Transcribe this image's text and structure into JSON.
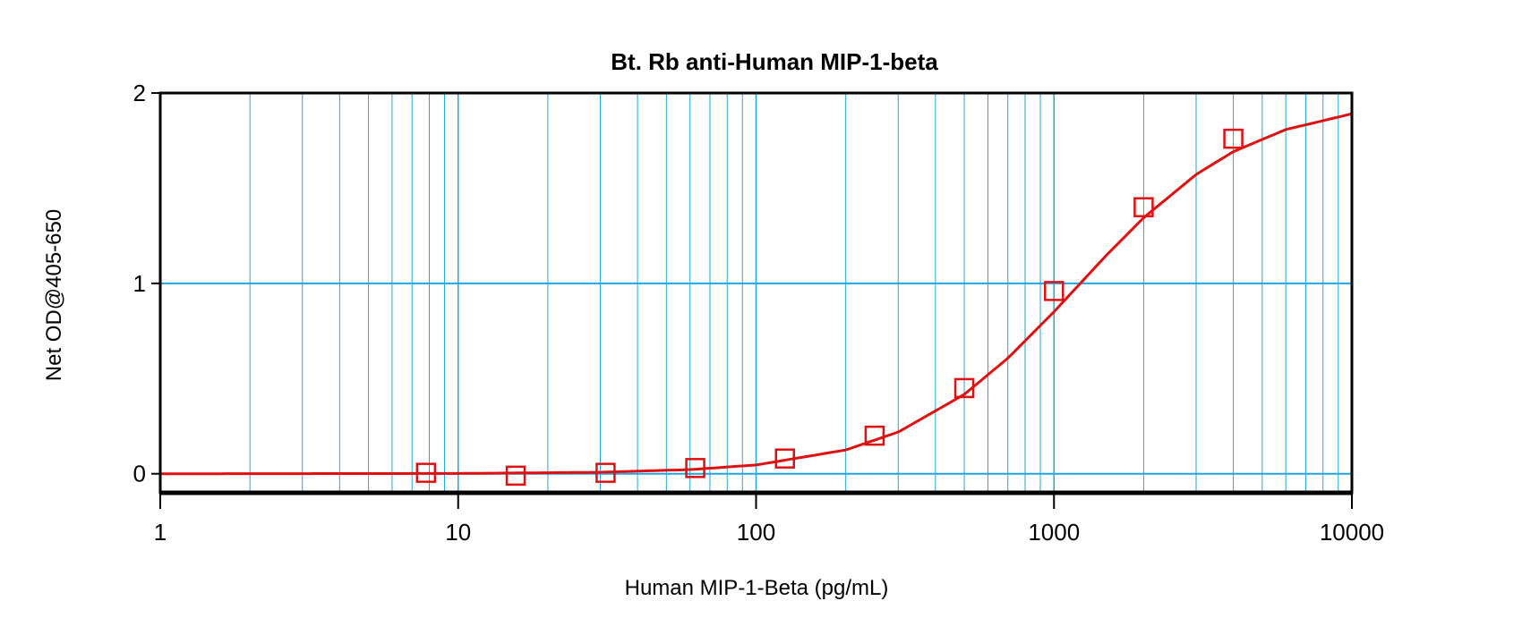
{
  "chart_data": {
    "type": "scatter",
    "title": "Bt. Rb anti-Human MIP-1-beta",
    "xlabel": "Human MIP-1-Beta (pg/mL)",
    "ylabel": "Net OD@405-650",
    "xscale": "log",
    "xlim": [
      1,
      10000
    ],
    "ylim": [
      -0.1,
      2
    ],
    "x_ticks": [
      "1",
      "10",
      "100",
      "1000",
      "10000"
    ],
    "y_ticks": [
      "0",
      "1",
      "2"
    ],
    "grid": true,
    "colors": {
      "grid": "#1EA6E0",
      "series": "#E01010",
      "axis": "#000000"
    },
    "points": {
      "x": [
        7.8,
        15.6,
        31.25,
        62.5,
        125,
        250,
        500,
        1000,
        2000,
        4000
      ],
      "y": [
        0.005,
        -0.01,
        0.005,
        0.03,
        0.08,
        0.2,
        0.45,
        0.96,
        1.4,
        1.76
      ],
      "marker": "open-square"
    },
    "fit_curve": {
      "x": [
        1,
        10,
        30,
        60,
        100,
        200,
        300,
        500,
        700,
        1000,
        1500,
        2000,
        3000,
        4000,
        6000,
        10000
      ],
      "y": [
        0,
        0.0015,
        0.0078,
        0.0218,
        0.046,
        0.125,
        0.219,
        0.417,
        0.607,
        0.851,
        1.148,
        1.345,
        1.572,
        1.692,
        1.808,
        1.891
      ]
    }
  }
}
